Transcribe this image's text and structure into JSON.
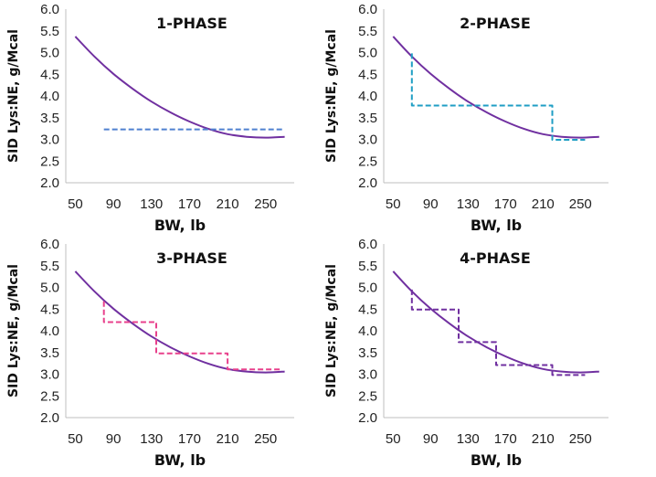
{
  "chart_data": [
    {
      "type": "line",
      "title": "1-PHASE",
      "xlabel": "BW, lb",
      "ylabel": "SID Lys:NE, g/Mcal",
      "x_ticks": [
        50,
        90,
        130,
        170,
        210,
        250
      ],
      "y_ticks": [
        "2.0",
        "2.5",
        "3.0",
        "3.5",
        "4.0",
        "4.5",
        "5.0",
        "5.5",
        "6.0"
      ],
      "xlim": [
        40,
        280
      ],
      "ylim": [
        2.0,
        6.0
      ],
      "grid": false,
      "series": [
        {
          "kind": "curve",
          "color": "#7030a0",
          "dash": "solid",
          "x": [
            50,
            70,
            90,
            110,
            130,
            150,
            170,
            190,
            210,
            230,
            250,
            270
          ],
          "y": [
            5.37,
            4.91,
            4.51,
            4.17,
            3.87,
            3.62,
            3.41,
            3.24,
            3.12,
            3.06,
            3.04,
            3.06
          ]
        },
        {
          "kind": "step",
          "color": "#4f81d0",
          "dash": "dashed",
          "x": [
            80,
            270
          ],
          "y": [
            3.23,
            3.23
          ]
        }
      ]
    },
    {
      "type": "line",
      "title": "2-PHASE",
      "xlabel": "BW, lb",
      "ylabel": "SID Lys:NE, g/Mcal",
      "x_ticks": [
        50,
        90,
        130,
        170,
        210,
        250
      ],
      "y_ticks": [
        "2.0",
        "2.5",
        "3.0",
        "3.5",
        "4.0",
        "4.5",
        "5.0",
        "5.5",
        "6.0"
      ],
      "xlim": [
        40,
        280
      ],
      "ylim": [
        2.0,
        6.0
      ],
      "grid": false,
      "series": [
        {
          "kind": "curve",
          "color": "#7030a0",
          "dash": "solid",
          "x": [
            50,
            70,
            90,
            110,
            130,
            150,
            170,
            190,
            210,
            230,
            250,
            270
          ],
          "y": [
            5.37,
            4.91,
            4.51,
            4.17,
            3.87,
            3.62,
            3.41,
            3.24,
            3.12,
            3.06,
            3.04,
            3.06
          ]
        },
        {
          "kind": "step",
          "color": "#1f9ec4",
          "dash": "dashed",
          "x": [
            70,
            70,
            220,
            220,
            255
          ],
          "y": [
            4.98,
            3.78,
            3.78,
            2.99,
            2.99
          ]
        }
      ]
    },
    {
      "type": "line",
      "title": "3-PHASE",
      "xlabel": "BW, lb",
      "ylabel": "SID Lys:NE, g/Mcal",
      "x_ticks": [
        50,
        90,
        130,
        170,
        210,
        250
      ],
      "y_ticks": [
        "2.0",
        "2.5",
        "3.0",
        "3.5",
        "4.0",
        "4.5",
        "5.0",
        "5.5",
        "6.0"
      ],
      "xlim": [
        40,
        280
      ],
      "ylim": [
        2.0,
        6.0
      ],
      "grid": false,
      "series": [
        {
          "kind": "curve",
          "color": "#7030a0",
          "dash": "solid",
          "x": [
            50,
            70,
            90,
            110,
            130,
            150,
            170,
            190,
            210,
            230,
            250,
            270
          ],
          "y": [
            5.37,
            4.91,
            4.51,
            4.17,
            3.87,
            3.62,
            3.41,
            3.24,
            3.12,
            3.06,
            3.04,
            3.06
          ]
        },
        {
          "kind": "step",
          "color": "#e8418c",
          "dash": "dashed",
          "x": [
            80,
            80,
            135,
            135,
            210,
            210,
            265
          ],
          "y": [
            4.68,
            4.2,
            4.2,
            3.48,
            3.48,
            3.11,
            3.11
          ]
        }
      ]
    },
    {
      "type": "line",
      "title": "4-PHASE",
      "xlabel": "BW, lb",
      "ylabel": "SID Lys:NE, g/Mcal",
      "x_ticks": [
        50,
        90,
        130,
        170,
        210,
        250
      ],
      "y_ticks": [
        "2.0",
        "2.5",
        "3.0",
        "3.5",
        "4.0",
        "4.5",
        "5.0",
        "5.5",
        "6.0"
      ],
      "xlim": [
        40,
        280
      ],
      "ylim": [
        2.0,
        6.0
      ],
      "grid": false,
      "series": [
        {
          "kind": "curve",
          "color": "#7030a0",
          "dash": "solid",
          "x": [
            50,
            70,
            90,
            110,
            130,
            150,
            170,
            190,
            210,
            230,
            250,
            270
          ],
          "y": [
            5.37,
            4.91,
            4.51,
            4.17,
            3.87,
            3.62,
            3.41,
            3.24,
            3.12,
            3.06,
            3.04,
            3.06
          ]
        },
        {
          "kind": "step",
          "color": "#7030a0",
          "dash": "dashed",
          "x": [
            70,
            70,
            120,
            120,
            160,
            160,
            220,
            220,
            255
          ],
          "y": [
            4.95,
            4.49,
            4.49,
            3.74,
            3.74,
            3.21,
            3.21,
            2.98,
            2.98
          ]
        }
      ]
    }
  ]
}
